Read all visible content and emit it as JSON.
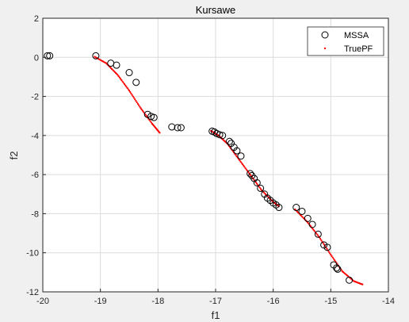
{
  "chart_data": {
    "type": "scatter",
    "title": "Kursawe",
    "xlabel": "f1",
    "ylabel": "f2",
    "xlim": [
      -20,
      -14
    ],
    "ylim": [
      -12,
      2
    ],
    "xticks": [
      "-20",
      "-19",
      "-18",
      "-17",
      "-16",
      "-15",
      "-14"
    ],
    "yticks": [
      "2",
      "0",
      "-2",
      "-4",
      "-6",
      "-8",
      "-10",
      "-12"
    ],
    "grid": true,
    "legend": {
      "position": "top-right",
      "entries": [
        "MSSA",
        "TruePF"
      ]
    },
    "colors": {
      "mssa": "#000000",
      "truepf": "#ff0000",
      "background": "#f0f0f0",
      "axes": "#ffffff",
      "grid": "#dcdcdc"
    },
    "series": [
      {
        "name": "MSSA",
        "marker": "open-circle",
        "points": [
          [
            -19.92,
            0.08
          ],
          [
            -19.88,
            0.08
          ],
          [
            -19.08,
            0.08
          ],
          [
            -18.82,
            -0.3
          ],
          [
            -18.72,
            -0.4
          ],
          [
            -18.5,
            -0.78
          ],
          [
            -18.38,
            -1.28
          ],
          [
            -18.18,
            -2.92
          ],
          [
            -18.12,
            -3.02
          ],
          [
            -18.07,
            -3.08
          ],
          [
            -17.76,
            -3.56
          ],
          [
            -17.66,
            -3.6
          ],
          [
            -17.6,
            -3.6
          ],
          [
            -17.06,
            -3.78
          ],
          [
            -17.02,
            -3.82
          ],
          [
            -16.98,
            -3.9
          ],
          [
            -16.93,
            -3.96
          ],
          [
            -16.88,
            -4.0
          ],
          [
            -16.76,
            -4.3
          ],
          [
            -16.73,
            -4.4
          ],
          [
            -16.68,
            -4.6
          ],
          [
            -16.63,
            -4.78
          ],
          [
            -16.56,
            -5.05
          ],
          [
            -16.4,
            -5.95
          ],
          [
            -16.37,
            -6.05
          ],
          [
            -16.33,
            -6.2
          ],
          [
            -16.28,
            -6.42
          ],
          [
            -16.22,
            -6.7
          ],
          [
            -16.15,
            -7.0
          ],
          [
            -16.1,
            -7.2
          ],
          [
            -16.05,
            -7.32
          ],
          [
            -16.0,
            -7.45
          ],
          [
            -15.95,
            -7.55
          ],
          [
            -15.9,
            -7.68
          ],
          [
            -15.6,
            -7.68
          ],
          [
            -15.5,
            -7.88
          ],
          [
            -15.4,
            -8.24
          ],
          [
            -15.32,
            -8.55
          ],
          [
            -15.22,
            -9.05
          ],
          [
            -15.12,
            -9.6
          ],
          [
            -15.06,
            -9.72
          ],
          [
            -14.95,
            -10.62
          ],
          [
            -14.9,
            -10.78
          ],
          [
            -14.88,
            -10.84
          ],
          [
            -14.68,
            -11.4
          ]
        ]
      },
      {
        "name": "TruePF",
        "marker": "dot",
        "segments": [
          [
            [
              -19.1,
              0.03
            ],
            [
              -18.9,
              -0.3
            ],
            [
              -18.7,
              -0.9
            ],
            [
              -18.5,
              -1.7
            ],
            [
              -18.3,
              -2.6
            ],
            [
              -18.1,
              -3.4
            ],
            [
              -17.97,
              -3.86
            ]
          ],
          [
            [
              -17.08,
              -3.76
            ],
            [
              -16.95,
              -4.0
            ],
            [
              -16.8,
              -4.4
            ],
            [
              -16.6,
              -5.2
            ],
            [
              -16.4,
              -6.0
            ],
            [
              -16.2,
              -6.8
            ],
            [
              -16.0,
              -7.4
            ],
            [
              -15.9,
              -7.62
            ]
          ],
          [
            [
              -15.62,
              -7.78
            ],
            [
              -15.4,
              -8.45
            ],
            [
              -15.2,
              -9.2
            ],
            [
              -15.0,
              -10.1
            ],
            [
              -14.8,
              -10.95
            ],
            [
              -14.6,
              -11.45
            ],
            [
              -14.45,
              -11.62
            ]
          ]
        ]
      }
    ]
  }
}
